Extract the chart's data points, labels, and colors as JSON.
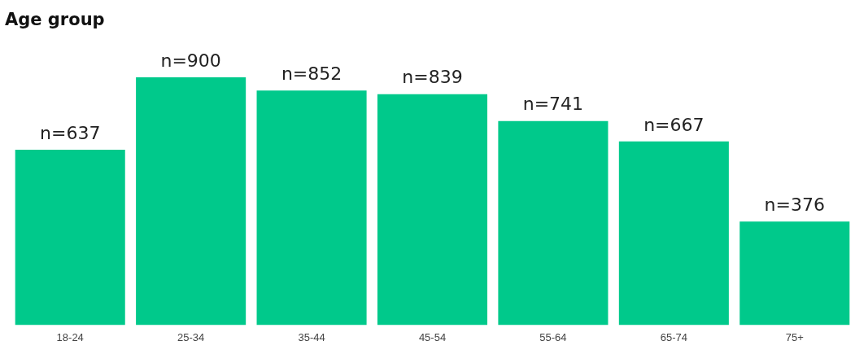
{
  "chart_data": {
    "type": "bar",
    "title": "Age group",
    "categories": [
      "18-24",
      "25-34",
      "35-44",
      "45-54",
      "55-64",
      "65-74",
      "75+"
    ],
    "values": [
      637,
      900,
      852,
      839,
      741,
      667,
      376
    ],
    "value_labels": [
      "n=637",
      "n=900",
      "n=852",
      "n=839",
      "n=741",
      "n=667",
      "n=376"
    ],
    "color": "#00c98b",
    "grid": false,
    "legend": false,
    "tick_labels": "x"
  }
}
